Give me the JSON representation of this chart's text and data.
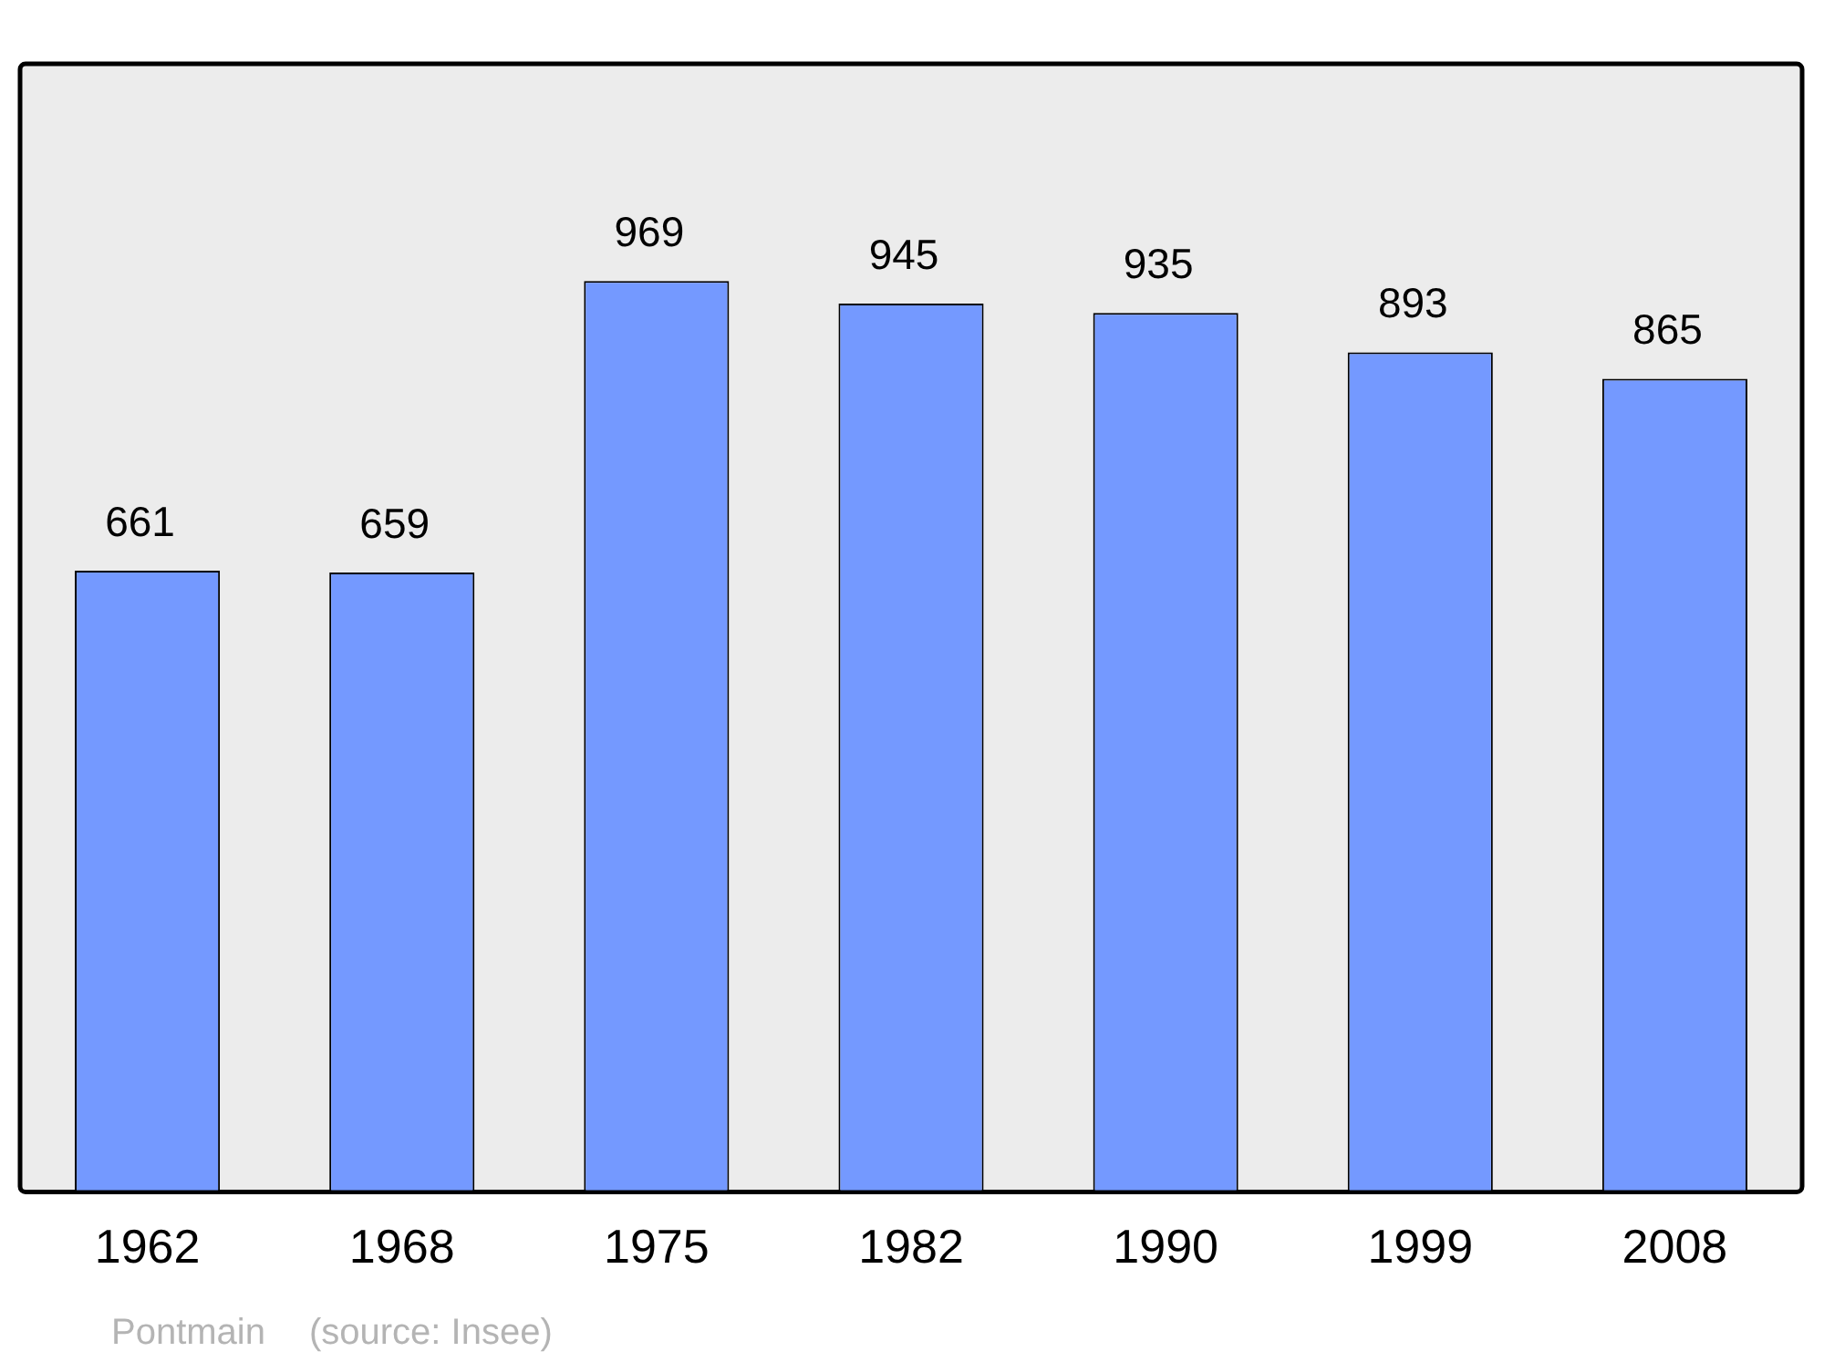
{
  "chart_data": {
    "type": "bar",
    "categories": [
      "1962",
      "1968",
      "1975",
      "1982",
      "1990",
      "1999",
      "2008"
    ],
    "values": [
      661,
      659,
      969,
      945,
      935,
      893,
      865
    ],
    "color": "#7499ff",
    "data_labels": true,
    "grid": false,
    "legend": false,
    "annotations": [
      "Pontmain",
      "(source: Insee)"
    ]
  }
}
